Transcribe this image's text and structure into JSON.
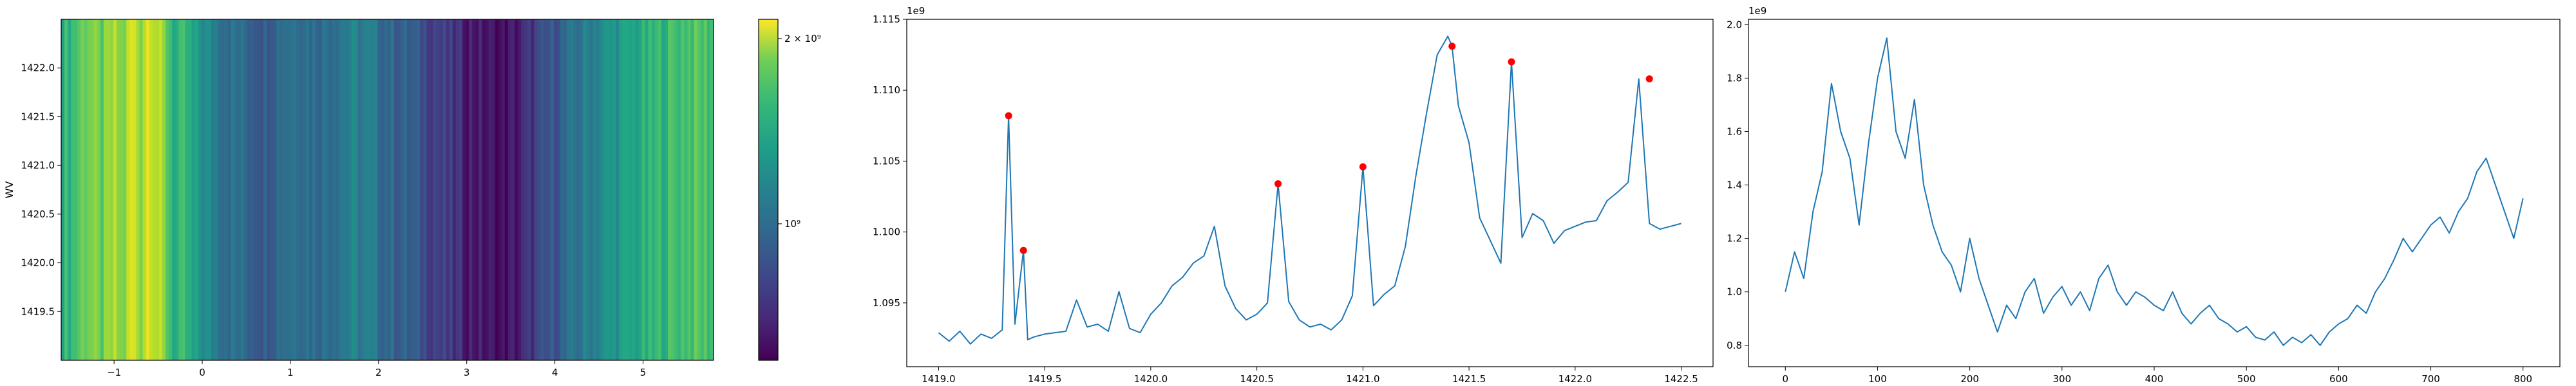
{
  "chart_data": [
    {
      "type": "heatmap",
      "ylabel": "WV",
      "xlim": [
        -1.6,
        5.8
      ],
      "ylim": [
        1419.0,
        1422.5
      ],
      "x_ticks": [
        -1,
        0,
        1,
        2,
        3,
        4,
        5
      ],
      "y_ticks": [
        1419.5,
        1420.0,
        1420.5,
        1421.0,
        1421.5,
        1422.0
      ],
      "colormap": "viridis",
      "colorbar": {
        "scale": "log",
        "range": [
          600000000,
          2150000000
        ],
        "tick_labels": [
          "2 × 10⁹",
          "10⁹"
        ],
        "tick_values": [
          2000000000,
          1000000000
        ]
      }
    },
    {
      "type": "line",
      "offset_label": "1e9",
      "xlim": [
        1418.85,
        1422.65
      ],
      "ylim": [
        1.0905,
        1.115
      ],
      "x_ticks": [
        "1419.0",
        "1419.5",
        "1420.0",
        "1420.5",
        "1421.0",
        "1421.5",
        "1422.0",
        "1422.5"
      ],
      "y_ticks": [
        "1.095",
        "1.100",
        "1.105",
        "1.110",
        "1.115"
      ],
      "x": [
        1419.0,
        1419.05,
        1419.1,
        1419.15,
        1419.2,
        1419.25,
        1419.3,
        1419.33,
        1419.36,
        1419.4,
        1419.42,
        1419.45,
        1419.5,
        1419.55,
        1419.6,
        1419.65,
        1419.7,
        1419.75,
        1419.8,
        1419.85,
        1419.9,
        1419.95,
        1420.0,
        1420.05,
        1420.1,
        1420.15,
        1420.2,
        1420.25,
        1420.3,
        1420.35,
        1420.4,
        1420.45,
        1420.5,
        1420.55,
        1420.6,
        1420.65,
        1420.7,
        1420.75,
        1420.8,
        1420.85,
        1420.9,
        1420.95,
        1421.0,
        1421.05,
        1421.1,
        1421.15,
        1421.2,
        1421.25,
        1421.3,
        1421.35,
        1421.4,
        1421.42,
        1421.45,
        1421.5,
        1421.55,
        1421.6,
        1421.65,
        1421.7,
        1421.75,
        1421.8,
        1421.85,
        1421.9,
        1421.95,
        1422.0,
        1422.05,
        1422.1,
        1422.15,
        1422.2,
        1422.25,
        1422.3,
        1422.35,
        1422.4,
        1422.45,
        1422.5
      ],
      "y": [
        1.0929,
        1.0923,
        1.093,
        1.0921,
        1.0928,
        1.0925,
        1.0931,
        1.1082,
        1.0935,
        1.0987,
        1.0924,
        1.0926,
        1.0928,
        1.0929,
        1.093,
        1.0952,
        1.0933,
        1.0935,
        1.093,
        1.0958,
        1.0932,
        1.0929,
        1.0942,
        1.095,
        1.0962,
        1.0968,
        1.0978,
        1.0983,
        1.1004,
        1.0962,
        1.0946,
        1.0938,
        1.0942,
        1.095,
        1.1034,
        1.0951,
        1.0938,
        1.0933,
        1.0935,
        1.0931,
        1.0938,
        1.0955,
        1.1046,
        1.0948,
        1.0956,
        1.0962,
        1.099,
        1.104,
        1.1084,
        1.1125,
        1.1138,
        1.1131,
        1.1089,
        1.1063,
        1.101,
        1.0994,
        1.0978,
        1.112,
        1.0996,
        1.1013,
        1.1008,
        1.0992,
        1.1001,
        1.1004,
        1.1007,
        1.1008,
        1.1022,
        1.1028,
        1.1035,
        1.1108,
        1.1006,
        1.1002,
        1.1004,
        1.1006
      ],
      "peaks_x": [
        1419.33,
        1419.4,
        1420.6,
        1421.0,
        1421.42,
        1421.7,
        1422.35
      ],
      "peaks_y": [
        1.1082,
        1.0987,
        1.1034,
        1.1046,
        1.1131,
        1.112,
        1.1108
      ]
    },
    {
      "type": "line",
      "offset_label": "1e9",
      "xlim": [
        -40,
        840
      ],
      "ylim": [
        0.72,
        2.02
      ],
      "x_ticks": [
        "0",
        "100",
        "200",
        "300",
        "400",
        "500",
        "600",
        "700",
        "800"
      ],
      "y_ticks": [
        "0.8",
        "1.0",
        "1.2",
        "1.4",
        "1.6",
        "1.8",
        "2.0"
      ],
      "x": [
        0,
        10,
        20,
        30,
        40,
        50,
        60,
        70,
        80,
        90,
        100,
        110,
        120,
        130,
        140,
        150,
        160,
        170,
        180,
        190,
        200,
        210,
        220,
        230,
        240,
        250,
        260,
        270,
        280,
        290,
        300,
        310,
        320,
        330,
        340,
        350,
        360,
        370,
        380,
        390,
        400,
        410,
        420,
        430,
        440,
        450,
        460,
        470,
        480,
        490,
        500,
        510,
        520,
        530,
        540,
        550,
        560,
        570,
        580,
        590,
        600,
        610,
        620,
        630,
        640,
        650,
        660,
        670,
        680,
        690,
        700,
        710,
        720,
        730,
        740,
        750,
        760,
        770,
        780,
        790,
        800
      ],
      "y": [
        1.0,
        1.15,
        1.05,
        1.3,
        1.45,
        1.78,
        1.6,
        1.5,
        1.25,
        1.55,
        1.8,
        1.95,
        1.6,
        1.5,
        1.72,
        1.4,
        1.25,
        1.15,
        1.1,
        1.0,
        1.2,
        1.05,
        0.95,
        0.85,
        0.95,
        0.9,
        1.0,
        1.05,
        0.92,
        0.98,
        1.02,
        0.95,
        1.0,
        0.93,
        1.05,
        1.1,
        1.0,
        0.95,
        1.0,
        0.98,
        0.95,
        0.93,
        1.0,
        0.92,
        0.88,
        0.92,
        0.95,
        0.9,
        0.88,
        0.85,
        0.87,
        0.83,
        0.82,
        0.85,
        0.8,
        0.83,
        0.81,
        0.84,
        0.8,
        0.85,
        0.88,
        0.9,
        0.95,
        0.92,
        1.0,
        1.05,
        1.12,
        1.2,
        1.15,
        1.2,
        1.25,
        1.28,
        1.22,
        1.3,
        1.35,
        1.45,
        1.5,
        1.4,
        1.3,
        1.2,
        1.35
      ]
    }
  ]
}
